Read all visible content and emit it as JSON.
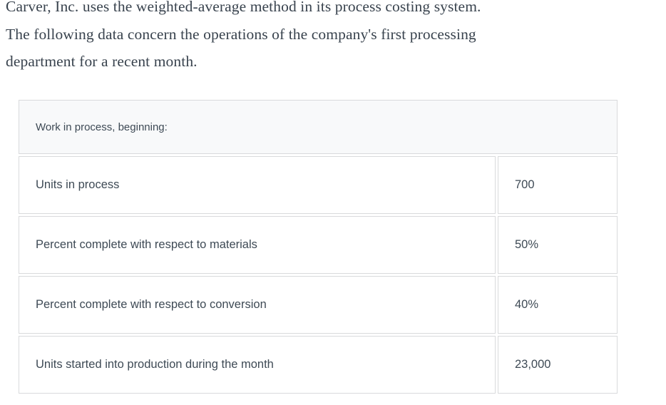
{
  "intro": {
    "lines": [
      "Carver, Inc. uses the weighted-average method in its process costing system.",
      "The following data concern the operations of the company's first processing",
      "department for a recent month."
    ]
  },
  "table": {
    "header": "Work in process, beginning:",
    "rows": [
      {
        "label": "Units in process",
        "value": "700"
      },
      {
        "label": "Percent complete with respect to materials",
        "value": "50%"
      },
      {
        "label": "Percent complete with respect to conversion",
        "value": "40%"
      },
      {
        "label": "Units started into production during the month",
        "value": "23,000"
      }
    ]
  },
  "colors": {
    "page_background": "#ffffff",
    "paragraph_text": "#39434e",
    "table_text": "#3e4a55",
    "table_border": "#d9dadc",
    "header_row_background": "#f8f9fa",
    "cell_background": "#ffffff"
  }
}
